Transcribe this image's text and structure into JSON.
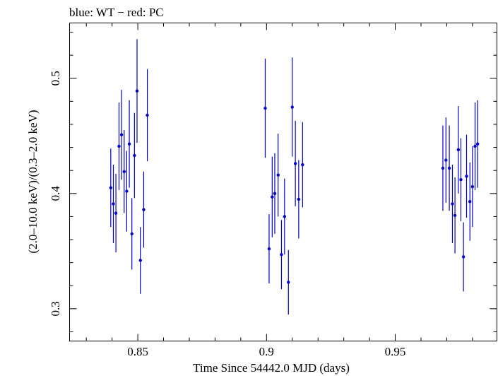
{
  "chart_data": {
    "type": "scatter",
    "title": "blue: WT − red: PC",
    "xlabel": "Time Since 54442.0 MJD (days)",
    "ylabel": "(2.0–10.0 keV)/(0.3–2.0 keV)",
    "xlim": [
      0.8235,
      0.9895
    ],
    "ylim": [
      0.272,
      0.548
    ],
    "x_ticks": [
      0.85,
      0.9,
      0.95
    ],
    "x_tick_labels": [
      "0.85",
      "0.9",
      "0.95"
    ],
    "y_ticks": [
      0.3,
      0.4,
      0.5
    ],
    "y_tick_labels": [
      "0.3",
      "0.4",
      "0.5"
    ],
    "x_minor_step": 0.01,
    "y_minor_step": 0.02,
    "grid": false,
    "series": [
      {
        "name": "WT",
        "color": "#0000cc",
        "points": [
          {
            "x": 0.8395,
            "y": 0.405,
            "yerr": 0.034
          },
          {
            "x": 0.8405,
            "y": 0.391,
            "yerr": 0.034
          },
          {
            "x": 0.8415,
            "y": 0.383,
            "yerr": 0.034
          },
          {
            "x": 0.8427,
            "y": 0.441,
            "yerr": 0.038
          },
          {
            "x": 0.8437,
            "y": 0.451,
            "yerr": 0.039
          },
          {
            "x": 0.8447,
            "y": 0.419,
            "yerr": 0.036
          },
          {
            "x": 0.8457,
            "y": 0.402,
            "yerr": 0.035
          },
          {
            "x": 0.8467,
            "y": 0.443,
            "yerr": 0.038
          },
          {
            "x": 0.8477,
            "y": 0.365,
            "yerr": 0.031
          },
          {
            "x": 0.8487,
            "y": 0.433,
            "yerr": 0.037
          },
          {
            "x": 0.8497,
            "y": 0.489,
            "yerr": 0.045
          },
          {
            "x": 0.851,
            "y": 0.342,
            "yerr": 0.029
          },
          {
            "x": 0.8523,
            "y": 0.386,
            "yerr": 0.033
          },
          {
            "x": 0.8537,
            "y": 0.468,
            "yerr": 0.04
          },
          {
            "x": 0.8995,
            "y": 0.474,
            "yerr": 0.043
          },
          {
            "x": 0.901,
            "y": 0.352,
            "yerr": 0.03
          },
          {
            "x": 0.9022,
            "y": 0.397,
            "yerr": 0.035
          },
          {
            "x": 0.9032,
            "y": 0.4,
            "yerr": 0.035
          },
          {
            "x": 0.9045,
            "y": 0.416,
            "yerr": 0.036
          },
          {
            "x": 0.9058,
            "y": 0.347,
            "yerr": 0.03
          },
          {
            "x": 0.907,
            "y": 0.38,
            "yerr": 0.033
          },
          {
            "x": 0.9085,
            "y": 0.323,
            "yerr": 0.028
          },
          {
            "x": 0.91,
            "y": 0.475,
            "yerr": 0.043
          },
          {
            "x": 0.9112,
            "y": 0.426,
            "yerr": 0.037
          },
          {
            "x": 0.9125,
            "y": 0.395,
            "yerr": 0.034
          },
          {
            "x": 0.914,
            "y": 0.425,
            "yerr": 0.037
          },
          {
            "x": 0.9685,
            "y": 0.422,
            "yerr": 0.037
          },
          {
            "x": 0.9697,
            "y": 0.429,
            "yerr": 0.037
          },
          {
            "x": 0.971,
            "y": 0.422,
            "yerr": 0.037
          },
          {
            "x": 0.9722,
            "y": 0.391,
            "yerr": 0.034
          },
          {
            "x": 0.9732,
            "y": 0.381,
            "yerr": 0.033
          },
          {
            "x": 0.9745,
            "y": 0.438,
            "yerr": 0.038
          },
          {
            "x": 0.9755,
            "y": 0.412,
            "yerr": 0.036
          },
          {
            "x": 0.9765,
            "y": 0.345,
            "yerr": 0.03
          },
          {
            "x": 0.9777,
            "y": 0.415,
            "yerr": 0.036
          },
          {
            "x": 0.979,
            "y": 0.393,
            "yerr": 0.034
          },
          {
            "x": 0.98,
            "y": 0.406,
            "yerr": 0.035
          },
          {
            "x": 0.981,
            "y": 0.441,
            "yerr": 0.038
          },
          {
            "x": 0.982,
            "y": 0.443,
            "yerr": 0.038
          }
        ]
      }
    ]
  }
}
